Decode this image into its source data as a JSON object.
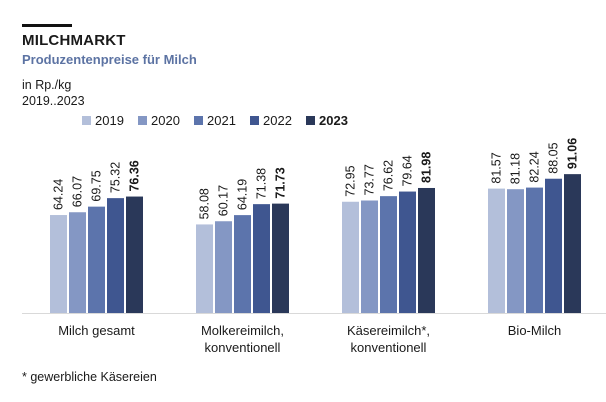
{
  "header": {
    "title": "MILCHMARKT",
    "subtitle": "Produzentenpreise für Milch",
    "unit": "in Rp./kg",
    "period": "2019..2023"
  },
  "footnote": "* gewerbliche Käsereien",
  "colors": [
    "#b3bfda",
    "#8497c4",
    "#5c74ac",
    "#3f5690",
    "#2a3859"
  ],
  "chart_data": {
    "type": "bar",
    "title": "Produzentenpreise für Milch",
    "ylabel": "in Rp./kg",
    "xlabel": "",
    "ylim": [
      0,
      100
    ],
    "categories": [
      [
        "Milch gesamt"
      ],
      [
        "Molkereimilch,",
        "konventionell"
      ],
      [
        "Käsereimilch*,",
        "konventionell"
      ],
      [
        "Bio-Milch"
      ]
    ],
    "series": [
      {
        "name": "2019",
        "values": [
          64.24,
          58.08,
          72.95,
          81.57
        ],
        "bold": false
      },
      {
        "name": "2020",
        "values": [
          66.07,
          60.17,
          73.77,
          81.18
        ],
        "bold": false
      },
      {
        "name": "2021",
        "values": [
          69.75,
          64.19,
          76.62,
          82.24
        ],
        "bold": false
      },
      {
        "name": "2022",
        "values": [
          75.32,
          71.38,
          79.64,
          88.05
        ],
        "bold": false
      },
      {
        "name": "2023",
        "values": [
          76.36,
          71.73,
          81.98,
          91.06
        ],
        "bold": true
      }
    ],
    "legend_position": "top"
  }
}
